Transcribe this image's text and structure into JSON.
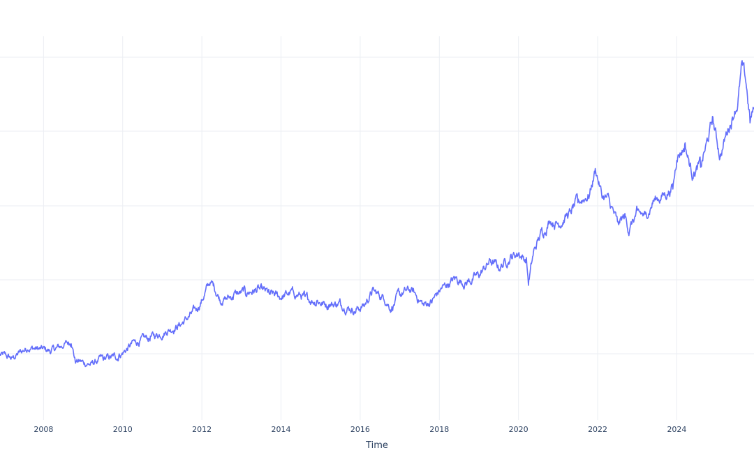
{
  "chart_data": {
    "type": "line",
    "title": "",
    "xlabel": "Time",
    "ylabel": "",
    "x_tick_labels": [
      "2008",
      "2010",
      "2012",
      "2014",
      "2016",
      "2018",
      "2020",
      "2022",
      "2024"
    ],
    "x_range": [
      2006.9,
      2025.95
    ],
    "y_range": [
      0,
      1
    ],
    "grid": true,
    "series": [
      {
        "color": "#636efa",
        "x": [
          2006.9,
          2007.2,
          2007.6,
          2007.9,
          2008.2,
          2008.5,
          2008.7,
          2008.8,
          2009.0,
          2009.2,
          2009.5,
          2009.9,
          2010.3,
          2010.7,
          2011.1,
          2011.5,
          2011.9,
          2012.2,
          2012.3,
          2012.5,
          2012.8,
          2013.1,
          2013.4,
          2013.7,
          2014.0,
          2014.3,
          2014.6,
          2014.9,
          2015.2,
          2015.5,
          2015.9,
          2016.1,
          2016.3,
          2016.6,
          2016.8,
          2017.0,
          2017.3,
          2017.6,
          2017.8,
          2018.1,
          2018.4,
          2018.7,
          2019.0,
          2019.3,
          2019.5,
          2019.8,
          2020.0,
          2020.2,
          2020.25,
          2020.4,
          2020.6,
          2020.8,
          2021.0,
          2021.3,
          2021.5,
          2021.8,
          2021.95,
          2022.1,
          2022.3,
          2022.5,
          2022.7,
          2022.8,
          2023.0,
          2023.2,
          2023.4,
          2023.7,
          2023.9,
          2024.0,
          2024.2,
          2024.4,
          2024.6,
          2024.8,
          2024.9,
          2025.1,
          2025.3,
          2025.45,
          2025.55,
          2025.65,
          2025.75,
          2025.85,
          2025.95
        ],
        "y": [
          0.165,
          0.155,
          0.185,
          0.18,
          0.175,
          0.19,
          0.2,
          0.15,
          0.145,
          0.14,
          0.155,
          0.16,
          0.2,
          0.21,
          0.23,
          0.25,
          0.29,
          0.36,
          0.35,
          0.31,
          0.325,
          0.335,
          0.34,
          0.33,
          0.32,
          0.335,
          0.32,
          0.31,
          0.3,
          0.305,
          0.285,
          0.3,
          0.335,
          0.32,
          0.29,
          0.33,
          0.34,
          0.3,
          0.31,
          0.35,
          0.37,
          0.36,
          0.38,
          0.42,
          0.4,
          0.43,
          0.44,
          0.42,
          0.36,
          0.45,
          0.5,
          0.53,
          0.52,
          0.55,
          0.58,
          0.6,
          0.67,
          0.6,
          0.58,
          0.52,
          0.54,
          0.5,
          0.55,
          0.54,
          0.58,
          0.6,
          0.62,
          0.7,
          0.73,
          0.65,
          0.68,
          0.75,
          0.8,
          0.7,
          0.78,
          0.82,
          0.85,
          0.95,
          0.9,
          0.8,
          0.83
        ]
      }
    ]
  }
}
